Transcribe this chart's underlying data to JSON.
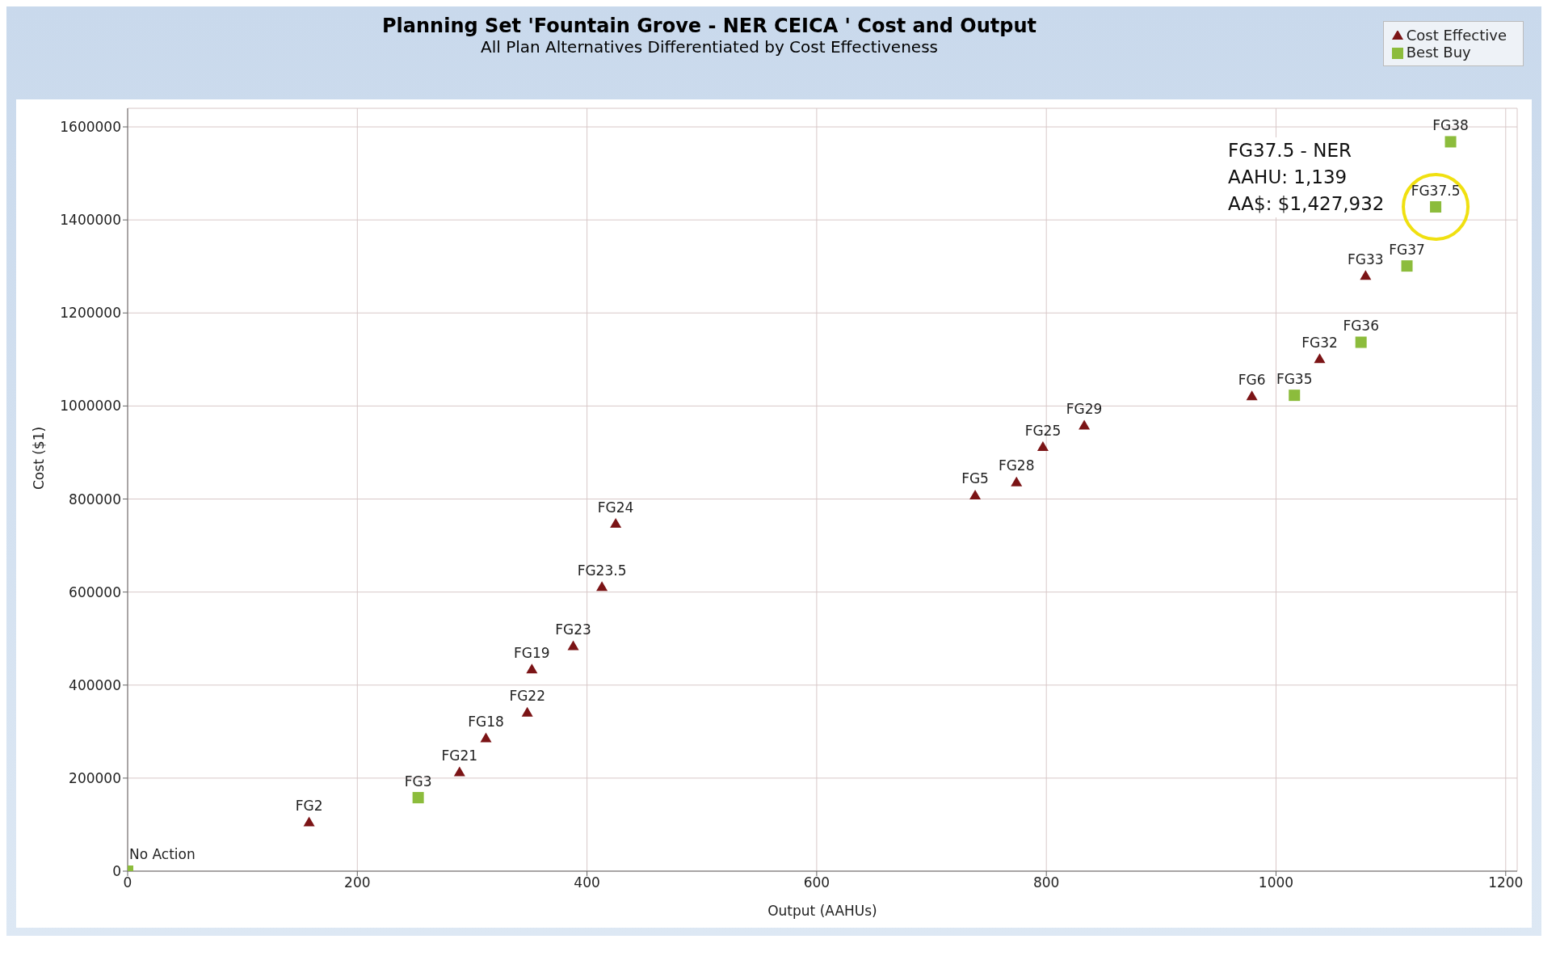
{
  "chart_data": {
    "type": "scatter",
    "title": "Planning Set 'Fountain Grove - NER CEICA ' Cost and Output",
    "subtitle": "All Plan Alternatives Differentiated by Cost Effectiveness",
    "xlabel": "Output (AAHUs)",
    "ylabel": "Cost ($1)",
    "xlim": [
      0,
      1210
    ],
    "xticks": [
      0,
      200,
      400,
      600,
      800,
      1000,
      1200
    ],
    "ylim": [
      0,
      1640000
    ],
    "yticks": [
      0,
      200000,
      400000,
      600000,
      800000,
      1000000,
      1200000,
      1400000,
      1600000
    ],
    "grid": true,
    "legend": "top right",
    "series": [
      {
        "name": "Cost Effective",
        "color": "#7b1416",
        "marker": "triangle",
        "x": [
          158,
          289,
          312,
          348,
          352,
          388,
          413,
          425,
          738,
          774,
          797,
          833,
          979,
          1038,
          1078
        ],
        "values": [
          105000,
          213000,
          286000,
          341000,
          434000,
          484000,
          611000,
          747000,
          808000,
          836000,
          912000,
          958000,
          1021000,
          1101000,
          1280000
        ],
        "value_labels": [
          "FG2",
          "FG21",
          "FG18",
          "FG22",
          "FG19",
          "FG23",
          "FG23.5",
          "FG24",
          "FG5",
          "FG28",
          "FG25",
          "FG29",
          "FG6",
          "FG32",
          "FG33"
        ]
      },
      {
        "name": "Best Buy",
        "color": "#8cbc3c",
        "marker": "square",
        "x": [
          0,
          253,
          1016,
          1074,
          1114,
          1139,
          1152
        ],
        "values": [
          0,
          158000,
          1023000,
          1137000,
          1301000,
          1428000,
          1568000
        ],
        "value_labels": [
          "No Action",
          "FG3",
          "FG35",
          "FG36",
          "FG37",
          "FG37.5",
          "FG38"
        ]
      }
    ],
    "annotations": [
      {
        "text": "FG37.5 - NER\nAAHU: 1,139\nAA$: $1,427,932",
        "x": 1139,
        "y": 1428000
      }
    ]
  }
}
